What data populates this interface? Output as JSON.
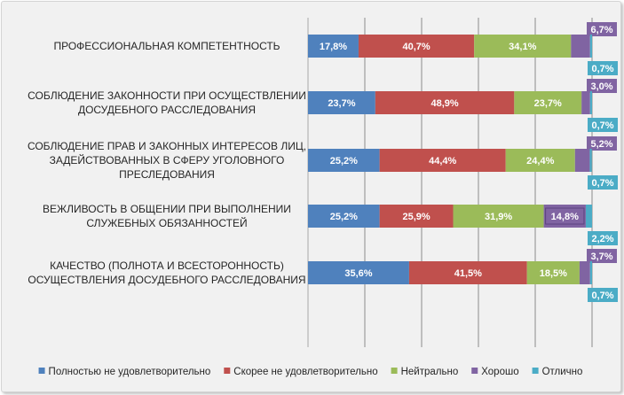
{
  "chart_data": {
    "type": "bar",
    "orientation": "horizontal",
    "stacked": true,
    "percent_scale": true,
    "categories": [
      [
        "ПРОФЕССИОНАЛЬНАЯ КОМПЕТЕНТНОСТЬ"
      ],
      [
        "СОБЛЮДЕНИЕ ЗАКОННОСТИ ПРИ ОСУЩЕСТВЛЕНИИ",
        "ДОСУДЕБНОГО РАССЛЕДОВАНИЯ"
      ],
      [
        "СОБЛЮДЕНИЕ ПРАВ И ЗАКОННЫХ ИНТЕРЕСОВ ЛИЦ,",
        "ЗАДЕЙСТВОВАННЫХ В СФЕРУ УГОЛОВНОГО",
        "ПРЕСЛЕДОВАНИЯ"
      ],
      [
        "ВЕЖЛИВОСТЬ В ОБЩЕНИИ ПРИ ВЫПОЛНЕНИИ",
        "СЛУЖЕБНЫХ ОБЯЗАННОСТЕЙ"
      ],
      [
        "КАЧЕСТВО (ПОЛНОТА И ВСЕСТОРОННОСТЬ)",
        "ОСУЩЕСТВЛЕНИЯ ДОСУДЕБНОГО РАССЛЕДОВАНИЯ"
      ]
    ],
    "series": [
      {
        "name": "Полностью не удовлетворительно",
        "color": "#4f81bd",
        "values": [
          17.8,
          23.7,
          25.2,
          25.2,
          35.6
        ],
        "labels": [
          "17,8%",
          "23,7%",
          "25,2%",
          "25,2%",
          "35,6%"
        ]
      },
      {
        "name": "Скорее не удовлетворительно",
        "color": "#c0504d",
        "values": [
          40.7,
          48.9,
          44.4,
          25.9,
          41.5
        ],
        "labels": [
          "40,7%",
          "48,9%",
          "44,4%",
          "25,9%",
          "41,5%"
        ]
      },
      {
        "name": "Нейтрально",
        "color": "#9bbb59",
        "values": [
          34.1,
          23.7,
          24.4,
          31.9,
          18.5
        ],
        "labels": [
          "34,1%",
          "23,7%",
          "24,4%",
          "31,9%",
          "18,5%"
        ]
      },
      {
        "name": "Хорошо",
        "color": "#8064a2",
        "values": [
          6.7,
          3.0,
          5.2,
          14.8,
          3.7
        ],
        "labels": [
          "6,7%",
          "3,0%",
          "5,2%",
          "14,8%",
          "3,7%"
        ]
      },
      {
        "name": "Отлично",
        "color": "#4bacc6",
        "values": [
          0.7,
          0.7,
          0.7,
          2.2,
          0.7
        ],
        "labels": [
          "0,7%",
          "0,7%",
          "0,7%",
          "2,2%",
          "0,7%"
        ]
      }
    ],
    "xlim": [
      0,
      100
    ],
    "grid": true,
    "legend_position": "bottom"
  }
}
